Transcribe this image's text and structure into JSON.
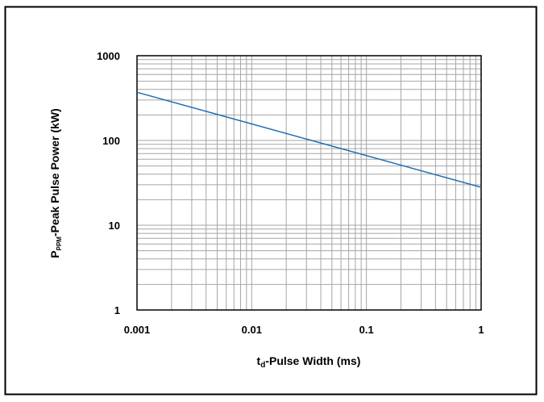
{
  "chart_data": {
    "type": "line",
    "title": "",
    "xlabel": {
      "main": "t",
      "sub": "d",
      "rest": "-Pulse Width (ms)"
    },
    "ylabel": {
      "main": "P",
      "sub": "PPM",
      "rest": "-Peak Pulse Power (kW)"
    },
    "x_scale": "log",
    "y_scale": "log",
    "xlim": [
      0.001,
      1
    ],
    "ylim": [
      1,
      1000
    ],
    "x_ticks": [
      "0.001",
      "0.01",
      "0.1",
      "1"
    ],
    "y_ticks": [
      "1",
      "10",
      "100",
      "1000"
    ],
    "grid": true,
    "legend": "none",
    "series": [
      {
        "x": [
          0.001,
          1
        ],
        "y": [
          370,
          28
        ],
        "color": "#1f6fb4"
      }
    ]
  },
  "colors": {
    "frame": "#000000",
    "grid": "#a6a6a6",
    "axis": "#000000"
  }
}
